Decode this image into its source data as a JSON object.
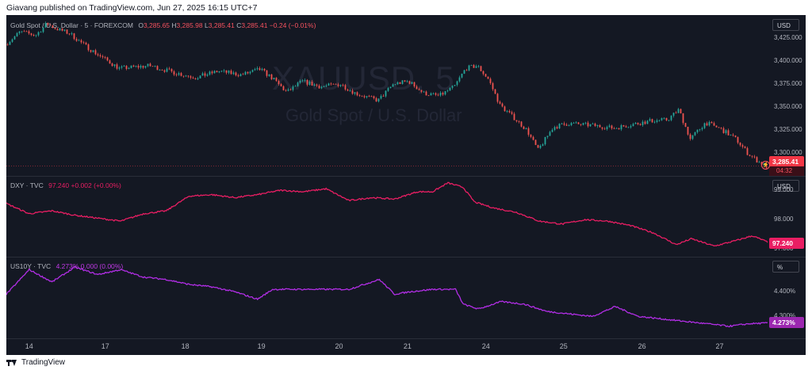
{
  "header": {
    "published": "Giavang published on TradingView.com, Jun 27, 2025 16:15 UTC+7"
  },
  "footer": {
    "brand": "TradingView",
    "logo_icon": "tradingview-logo-icon"
  },
  "watermark": {
    "symbol": "XAUUSD, 5",
    "name": "Gold Spot / U.S. Dollar"
  },
  "colors": {
    "background": "#141823",
    "gold_up": "#26a69a",
    "gold_down": "#ef5350",
    "dxy": "#e91e63",
    "us10y": "#9c27b0",
    "price_tag_gold": "#f23645",
    "price_tag_dxy": "#e91e63",
    "price_tag_us10y": "#9c27b0"
  },
  "panes": {
    "gold": {
      "title": "Gold Spot / U.S. Dollar · 5 · FOREXCOM",
      "o_label": "O",
      "o": "3,285.65",
      "h_label": "H",
      "h": "3,285.98",
      "l_label": "L",
      "l": "3,285.41",
      "c_label": "C",
      "c": "3,285.41",
      "change": "−0.24 (−0.01%)",
      "unit": "USD",
      "ticks": [
        "3,425.000",
        "3,400.000",
        "3,375.000",
        "3,350.000",
        "3,325.000",
        "3,300.000"
      ],
      "last_price": "3,285.41",
      "countdown": "04:32",
      "alert_icon": "alert-clock-icon"
    },
    "dxy": {
      "title": "DXY · TVC",
      "value": "97.240",
      "change": "+0.002 (+0.00%)",
      "unit": "USD",
      "ticks": [
        "99.000",
        "98.000",
        "97.000"
      ],
      "last_price": "97.240"
    },
    "us10y": {
      "title": "US10Y · TVC",
      "value": "4.273%",
      "change": "0.000 (0.00%)",
      "unit": "%",
      "ticks": [
        "4.400%",
        "4.300%"
      ],
      "last_price": "4.273%"
    }
  },
  "x_axis": {
    "labels": [
      "14",
      "17",
      "18",
      "19",
      "20",
      "21",
      "24",
      "25",
      "26",
      "27"
    ]
  },
  "chart_data": [
    {
      "type": "candlestick",
      "title": "Gold Spot / U.S. Dollar · 5 · FOREXCOM",
      "x_labels": [
        "14",
        "17",
        "18",
        "19",
        "20",
        "21",
        "24",
        "25",
        "26",
        "27"
      ],
      "ylim": [
        3280,
        3445
      ],
      "y_ticks": [
        3300,
        3325,
        3350,
        3375,
        3400,
        3425
      ],
      "path_x": [
        0,
        0.02,
        0.04,
        0.055,
        0.065,
        0.085,
        0.1,
        0.12,
        0.15,
        0.19,
        0.22,
        0.25,
        0.28,
        0.31,
        0.335,
        0.35,
        0.37,
        0.39,
        0.415,
        0.44,
        0.46,
        0.49,
        0.51,
        0.53,
        0.55,
        0.57,
        0.59,
        0.605,
        0.62,
        0.635,
        0.65,
        0.67,
        0.685,
        0.7,
        0.72,
        0.74,
        0.77,
        0.8,
        0.83,
        0.85,
        0.87,
        0.885,
        0.9,
        0.92,
        0.94,
        0.96,
        0.975,
        0.99,
        1.0
      ],
      "path_y": [
        3418,
        3432,
        3428,
        3441,
        3436,
        3430,
        3420,
        3408,
        3392,
        3395,
        3388,
        3382,
        3389,
        3385,
        3391,
        3382,
        3366,
        3378,
        3372,
        3375,
        3365,
        3357,
        3375,
        3378,
        3365,
        3362,
        3372,
        3392,
        3395,
        3380,
        3352,
        3337,
        3325,
        3303,
        3328,
        3332,
        3330,
        3327,
        3332,
        3335,
        3336,
        3347,
        3315,
        3333,
        3326,
        3315,
        3300,
        3290,
        3285.41
      ]
    },
    {
      "type": "line",
      "title": "DXY · TVC",
      "x_labels": [
        "14",
        "17",
        "18",
        "19",
        "20",
        "21",
        "24",
        "25",
        "26",
        "27"
      ],
      "ylim": [
        96.9,
        99.3
      ],
      "y_ticks": [
        97,
        98,
        99
      ],
      "x": [
        0,
        0.03,
        0.06,
        0.09,
        0.12,
        0.15,
        0.18,
        0.21,
        0.24,
        0.27,
        0.3,
        0.33,
        0.36,
        0.39,
        0.42,
        0.45,
        0.48,
        0.51,
        0.54,
        0.56,
        0.58,
        0.6,
        0.615,
        0.64,
        0.67,
        0.7,
        0.73,
        0.76,
        0.79,
        0.82,
        0.85,
        0.88,
        0.9,
        0.93,
        0.96,
        0.98,
        1.0
      ],
      "values": [
        98.55,
        98.2,
        98.3,
        98.15,
        98.05,
        97.95,
        98.2,
        98.3,
        98.8,
        98.85,
        98.75,
        98.85,
        99.0,
        98.95,
        99.05,
        98.65,
        98.75,
        98.7,
        98.95,
        98.95,
        99.25,
        99.1,
        98.6,
        98.4,
        98.25,
        97.95,
        97.85,
        98.0,
        97.95,
        97.8,
        97.55,
        97.15,
        97.35,
        97.1,
        97.3,
        97.45,
        97.24
      ]
    },
    {
      "type": "line",
      "title": "US10Y · TVC",
      "x_labels": [
        "14",
        "17",
        "18",
        "19",
        "20",
        "21",
        "24",
        "25",
        "26",
        "27"
      ],
      "ylim": [
        4.23,
        4.52
      ],
      "y_ticks": [
        4.3,
        4.4
      ],
      "x": [
        0,
        0.03,
        0.06,
        0.09,
        0.12,
        0.15,
        0.18,
        0.21,
        0.24,
        0.27,
        0.3,
        0.33,
        0.35,
        0.4,
        0.45,
        0.47,
        0.49,
        0.51,
        0.53,
        0.56,
        0.59,
        0.6,
        0.62,
        0.65,
        0.68,
        0.71,
        0.74,
        0.77,
        0.8,
        0.83,
        0.86,
        0.89,
        0.92,
        0.95,
        0.975,
        1.0
      ],
      "values": [
        4.39,
        4.49,
        4.44,
        4.5,
        4.47,
        4.49,
        4.46,
        4.45,
        4.43,
        4.42,
        4.4,
        4.37,
        4.41,
        4.41,
        4.41,
        4.43,
        4.45,
        4.39,
        4.4,
        4.41,
        4.41,
        4.35,
        4.33,
        4.36,
        4.35,
        4.32,
        4.31,
        4.3,
        4.34,
        4.3,
        4.29,
        4.28,
        4.27,
        4.26,
        4.27,
        4.273
      ]
    }
  ]
}
